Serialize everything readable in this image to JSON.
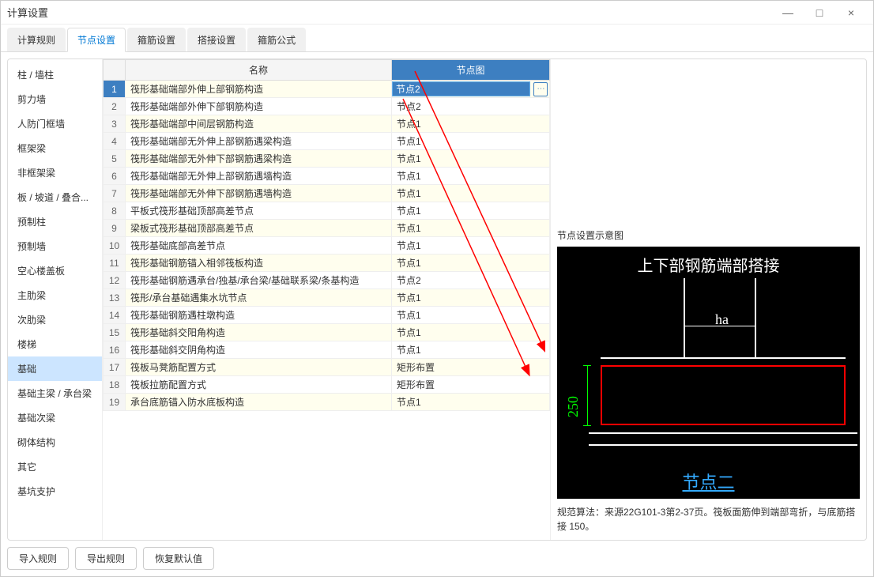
{
  "window": {
    "title": "计算设置"
  },
  "titlebar_controls": {
    "min": "—",
    "max": "□",
    "close": "×"
  },
  "tabs": [
    {
      "label": "计算规则",
      "active": false
    },
    {
      "label": "节点设置",
      "active": true
    },
    {
      "label": "箍筋设置",
      "active": false
    },
    {
      "label": "搭接设置",
      "active": false
    },
    {
      "label": "箍筋公式",
      "active": false
    }
  ],
  "sidebar": {
    "items": [
      "柱 / 墙柱",
      "剪力墙",
      "人防门框墙",
      "框架梁",
      "非框架梁",
      "板 / 坡道 / 叠合...",
      "预制柱",
      "预制墙",
      "空心楼盖板",
      "主肋梁",
      "次肋梁",
      "楼梯",
      "基础",
      "基础主梁 / 承台梁",
      "基础次梁",
      "砌体结构",
      "其它",
      "基坑支护"
    ],
    "active_index": 12
  },
  "table": {
    "headers": {
      "name": "名称",
      "node": "节点图"
    },
    "editing_row_index": 0,
    "editing_value": "节点2",
    "rows": [
      {
        "name": "筏形基础端部外伸上部钢筋构造",
        "node": "节点2"
      },
      {
        "name": "筏形基础端部外伸下部钢筋构造",
        "node": "节点2"
      },
      {
        "name": "筏形基础端部中间层钢筋构造",
        "node": "节点1"
      },
      {
        "name": "筏形基础端部无外伸上部钢筋遇梁构造",
        "node": "节点1"
      },
      {
        "name": "筏形基础端部无外伸下部钢筋遇梁构造",
        "node": "节点1"
      },
      {
        "name": "筏形基础端部无外伸上部钢筋遇墙构造",
        "node": "节点1"
      },
      {
        "name": "筏形基础端部无外伸下部钢筋遇墙构造",
        "node": "节点1"
      },
      {
        "name": "平板式筏形基础顶部高差节点",
        "node": "节点1"
      },
      {
        "name": "梁板式筏形基础顶部高差节点",
        "node": "节点1"
      },
      {
        "name": "筏形基础底部高差节点",
        "node": "节点1"
      },
      {
        "name": "筏形基础钢筋锚入相邻筏板构造",
        "node": "节点1"
      },
      {
        "name": "筏形基础钢筋遇承台/独基/承台梁/基础联系梁/条基构造",
        "node": "节点2"
      },
      {
        "name": "筏形/承台基础遇集水坑节点",
        "node": "节点1"
      },
      {
        "name": "筏形基础钢筋遇柱墩构造",
        "node": "节点1"
      },
      {
        "name": "筏形基础斜交阳角构造",
        "node": "节点1"
      },
      {
        "name": "筏形基础斜交阴角构造",
        "node": "节点1"
      },
      {
        "name": "筏板马凳筋配置方式",
        "node": "矩形布置"
      },
      {
        "name": "筏板拉筋配置方式",
        "node": "矩形布置"
      },
      {
        "name": "承台底筋锚入防水底板构造",
        "node": "节点1"
      }
    ]
  },
  "preview": {
    "title": "节点设置示意图",
    "diagram": {
      "heading": "上下部钢筋端部搭接",
      "ha_label": "ha",
      "dim_label": "250",
      "footer": "节点二",
      "colors": {
        "bg": "#000000",
        "line": "#ffffff",
        "highlight": "#ff0000",
        "dim": "#00ff00",
        "link": "#33aaff"
      }
    },
    "desc": "规范算法：来源22G101-3第2-37页。筏板面筋伸到端部弯折，与底筋搭接 150。"
  },
  "footer_buttons": {
    "import": "导入规则",
    "export": "导出规则",
    "reset": "恢复默认值"
  },
  "edit_button_glyph": "⋯"
}
